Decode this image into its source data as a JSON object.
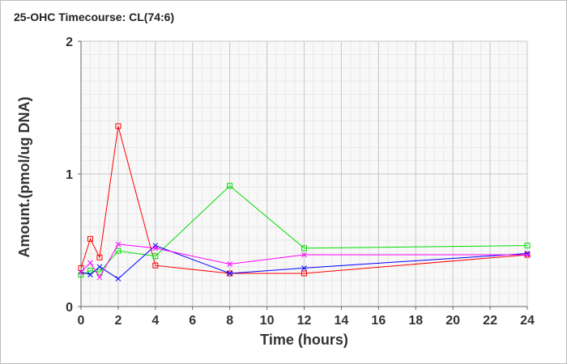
{
  "chart_data": {
    "type": "line",
    "title": "25-OHC Timecourse: CL(74:6)",
    "xlabel": "Time (hours)",
    "ylabel": "Amount.(pmol/ug DNA)",
    "xlim": [
      0,
      24
    ],
    "ylim": [
      0,
      2
    ],
    "xticks": [
      0,
      2,
      4,
      6,
      8,
      10,
      12,
      14,
      16,
      18,
      20,
      22,
      24
    ],
    "yticks": [
      0,
      1,
      2
    ],
    "grid": true,
    "series": [
      {
        "color": "#ff0000",
        "marker": "square",
        "x": [
          0,
          0.5,
          1,
          2,
          4,
          8,
          12,
          24
        ],
        "values": [
          0.29,
          0.51,
          0.37,
          1.36,
          0.31,
          0.25,
          0.25,
          0.39
        ]
      },
      {
        "color": "#00dd00",
        "marker": "square",
        "x": [
          0,
          0.5,
          1,
          2,
          4,
          8,
          12,
          24
        ],
        "values": [
          0.24,
          0.27,
          0.26,
          0.42,
          0.38,
          0.91,
          0.44,
          0.46
        ]
      },
      {
        "color": "#0000ff",
        "marker": "x",
        "x": [
          0,
          0.5,
          1,
          2,
          4,
          8,
          12,
          24
        ],
        "values": [
          0.26,
          0.24,
          0.3,
          0.21,
          0.46,
          0.25,
          0.29,
          0.4
        ]
      },
      {
        "color": "#ff00ff",
        "marker": "x",
        "x": [
          0,
          0.5,
          1,
          2,
          4,
          8,
          12,
          24
        ],
        "values": [
          0.26,
          0.33,
          0.22,
          0.47,
          0.44,
          0.32,
          0.39,
          0.39
        ]
      }
    ]
  }
}
